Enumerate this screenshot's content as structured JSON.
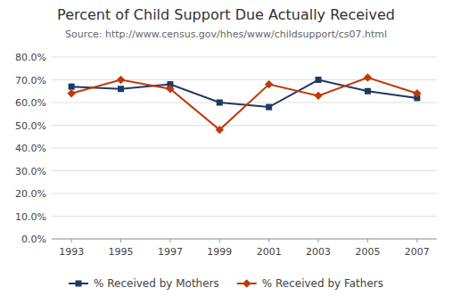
{
  "chart_data": {
    "type": "line",
    "title": "Percent of Child Support Due Actually Received",
    "subtitle": "Source:  http://www.census.gov/hhes/www/childsupport/cs07.html",
    "x": [
      1993,
      1995,
      1997,
      1999,
      2001,
      2003,
      2005,
      2007
    ],
    "xlim": [
      1992.2,
      2007.8
    ],
    "xticks": [
      1993,
      1995,
      1997,
      1999,
      2001,
      2003,
      2005,
      2007
    ],
    "ylim": [
      0.0,
      0.8
    ],
    "yticks": [
      {
        "value": 0.0,
        "label": "0.0%"
      },
      {
        "value": 0.1,
        "label": "10.0%"
      },
      {
        "value": 0.2,
        "label": "20.0%"
      },
      {
        "value": 0.3,
        "label": "30.0%"
      },
      {
        "value": 0.4,
        "label": "40.0%"
      },
      {
        "value": 0.5,
        "label": "50.0%"
      },
      {
        "value": 0.6,
        "label": "60.0%"
      },
      {
        "value": 0.7,
        "label": "70.0%"
      },
      {
        "value": 0.8,
        "label": "80.0%"
      }
    ],
    "grid": true,
    "legend": "bottom",
    "series": [
      {
        "name": "% Received by Mothers",
        "color": "#1F3864",
        "marker": "square",
        "line_style": "solid",
        "values": [
          0.67,
          0.66,
          0.68,
          0.6,
          0.58,
          0.7,
          0.65,
          0.62
        ]
      },
      {
        "name": "% Received by Fathers",
        "color": "#C0390B",
        "marker": "diamond",
        "line_style": "solid",
        "values": [
          0.64,
          0.7,
          0.66,
          0.48,
          0.68,
          0.63,
          0.71,
          0.64
        ]
      }
    ]
  }
}
